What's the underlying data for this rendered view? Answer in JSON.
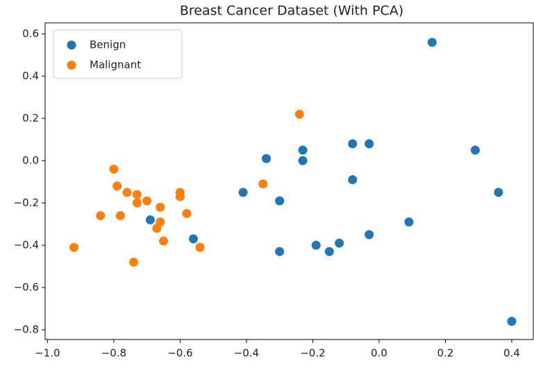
{
  "chart_data": {
    "type": "scatter",
    "title": "Breast Cancer Dataset (With PCA)",
    "series": [
      {
        "name": "Benign",
        "color": "#1f77b4",
        "x": [
          0.16,
          0.29,
          0.36,
          0.4,
          0.09,
          -0.03,
          -0.08,
          -0.08,
          -0.03,
          -0.23,
          -0.23,
          -0.34,
          -0.41,
          -0.3,
          -0.19,
          -0.15,
          -0.12,
          -0.3,
          -0.69,
          -0.56
        ],
        "values": [
          0.56,
          0.05,
          -0.15,
          -0.76,
          -0.29,
          0.08,
          0.08,
          -0.09,
          -0.35,
          0.05,
          0.0,
          0.01,
          -0.15,
          -0.19,
          -0.4,
          -0.43,
          -0.39,
          -0.43,
          -0.28,
          -0.37
        ]
      },
      {
        "name": "Malignant",
        "color": "#ff7f0e",
        "x": [
          -0.24,
          -0.35,
          -0.8,
          -0.79,
          -0.76,
          -0.73,
          -0.73,
          -0.7,
          -0.78,
          -0.84,
          -0.66,
          -0.66,
          -0.67,
          -0.65,
          -0.6,
          -0.6,
          -0.58,
          -0.54,
          -0.92,
          -0.74
        ],
        "values": [
          0.22,
          -0.11,
          -0.04,
          -0.12,
          -0.15,
          -0.16,
          -0.2,
          -0.19,
          -0.26,
          -0.26,
          -0.22,
          -0.29,
          -0.32,
          -0.38,
          -0.15,
          -0.17,
          -0.25,
          -0.41,
          -0.41,
          -0.48
        ]
      }
    ],
    "xlim": [
      -1.007,
      0.465
    ],
    "ylim": [
      -0.846,
      0.652
    ],
    "xticks": [
      {
        "value": -1.0,
        "label": "−1.0"
      },
      {
        "value": -0.8,
        "label": "−0.8"
      },
      {
        "value": -0.6,
        "label": "−0.6"
      },
      {
        "value": -0.4,
        "label": "−0.4"
      },
      {
        "value": -0.2,
        "label": "−0.2"
      },
      {
        "value": 0.0,
        "label": "0.0"
      },
      0.2,
      0.4
    ],
    "yticks": [
      {
        "value": -0.8,
        "label": "−0.8"
      },
      {
        "value": -0.6,
        "label": "−0.6"
      },
      {
        "value": -0.4,
        "label": "−0.4"
      },
      {
        "value": -0.2,
        "label": "−0.2"
      },
      {
        "value": 0.0,
        "label": "0.0"
      },
      0.2,
      0.4,
      0.6
    ],
    "legend": "upper left"
  }
}
